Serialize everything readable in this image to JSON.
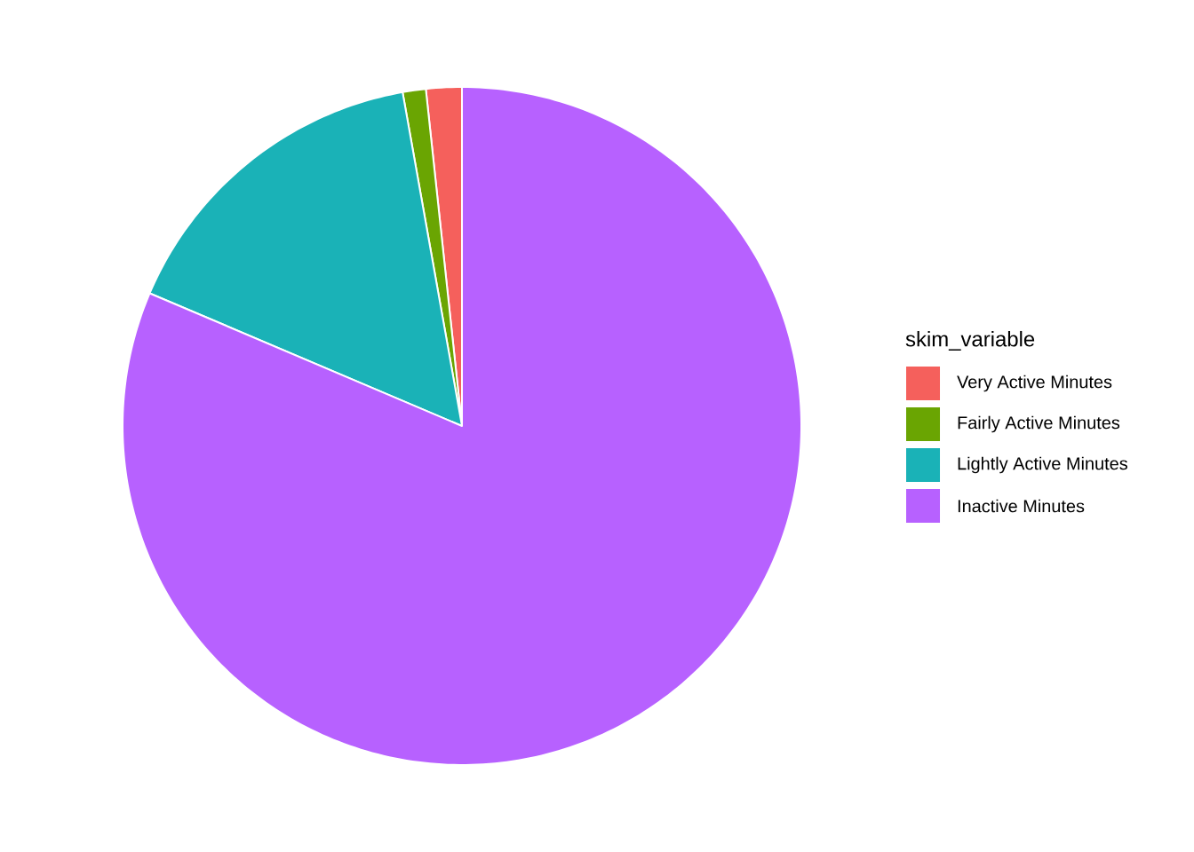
{
  "chart_data": {
    "type": "pie",
    "legend_title": "skim_variable",
    "legend": "right",
    "categories": [
      "Very Active Minutes",
      "Fairly Active Minutes",
      "Lightly Active Minutes",
      "Inactive Minutes"
    ],
    "values": [
      1.7,
      1.1,
      15.8,
      81.4
    ],
    "colors": [
      "#f5605c",
      "#6aa502",
      "#1ab2b7",
      "#b761ff"
    ]
  }
}
